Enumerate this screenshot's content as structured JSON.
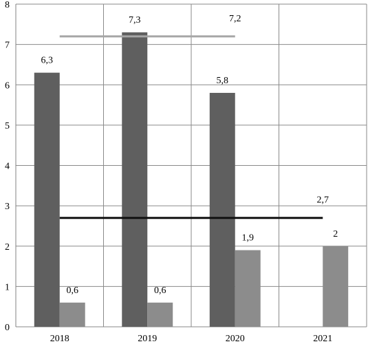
{
  "chart_data": {
    "type": "bar",
    "categories": [
      "2018",
      "2019",
      "2020",
      "2021"
    ],
    "ylim": [
      0,
      8
    ],
    "yticks": [
      "0",
      "1",
      "2",
      "3",
      "4",
      "5",
      "6",
      "7",
      "8"
    ],
    "grid": true,
    "series": [
      {
        "values": [
          6.3,
          7.3,
          5.8,
          null
        ],
        "labels": [
          "6,3",
          "7,3",
          "5,8",
          ""
        ],
        "color": "#5f5f5f"
      },
      {
        "values": [
          0.6,
          0.6,
          1.9,
          2
        ],
        "labels": [
          "0,6",
          "0,6",
          "1,9",
          "2"
        ],
        "color": "#8c8c8c"
      }
    ],
    "lines": [
      {
        "value": 7.2,
        "label": "7,2",
        "from_category": 0,
        "to_category": 2,
        "color": "#a6a6a6"
      },
      {
        "value": 2.7,
        "label": "2,7",
        "from_category": 0,
        "to_category": 3,
        "color": "#111111"
      }
    ]
  }
}
